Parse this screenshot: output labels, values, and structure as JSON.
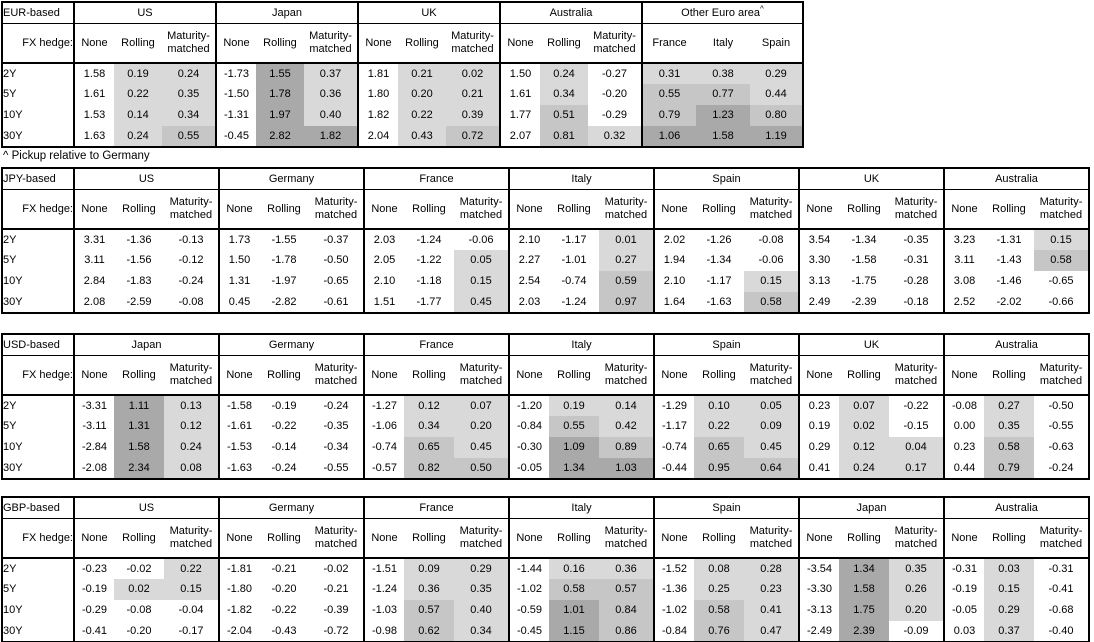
{
  "colors": {
    "shade_low": "#d9d9d9",
    "shade_mid": "#c6c6c6",
    "shade_high": "#a9a9a9",
    "grid_line": "#000000"
  },
  "tenors": [
    "2Y",
    "5Y",
    "10Y",
    "30Y"
  ],
  "fx_hedge_label": "FX hedge:",
  "hedge_options": [
    "None",
    "Rolling",
    "Maturity-matched"
  ],
  "footnote": "^ Pickup relative to Germany",
  "tables": [
    {
      "base_label": "EUR-based",
      "groups": [
        {
          "name": "US",
          "columns": [
            "None",
            "Rolling",
            "Maturity-matched"
          ],
          "shade_from_column": 1,
          "rows": [
            [
              "1.58",
              "0.19",
              "0.24"
            ],
            [
              "1.61",
              "0.22",
              "0.35"
            ],
            [
              "1.53",
              "0.14",
              "0.34"
            ],
            [
              "1.63",
              "0.24",
              "0.55"
            ]
          ]
        },
        {
          "name": "Japan",
          "columns": [
            "None",
            "Rolling",
            "Maturity-matched"
          ],
          "shade_from_column": 1,
          "rows": [
            [
              "-1.73",
              "1.55",
              "0.37"
            ],
            [
              "-1.50",
              "1.78",
              "0.36"
            ],
            [
              "-1.31",
              "1.97",
              "0.40"
            ],
            [
              "-0.45",
              "2.82",
              "1.82"
            ]
          ]
        },
        {
          "name": "UK",
          "columns": [
            "None",
            "Rolling",
            "Maturity-matched"
          ],
          "shade_from_column": 1,
          "rows": [
            [
              "1.81",
              "0.21",
              "0.02"
            ],
            [
              "1.80",
              "0.20",
              "0.21"
            ],
            [
              "1.82",
              "0.22",
              "0.39"
            ],
            [
              "2.04",
              "0.43",
              "0.72"
            ]
          ]
        },
        {
          "name": "Australia",
          "columns": [
            "None",
            "Rolling",
            "Maturity-matched"
          ],
          "shade_from_column": 1,
          "rows": [
            [
              "1.50",
              "0.24",
              "-0.27"
            ],
            [
              "1.61",
              "0.34",
              "-0.20"
            ],
            [
              "1.77",
              "0.51",
              "-0.29"
            ],
            [
              "2.07",
              "0.81",
              "0.32"
            ]
          ]
        },
        {
          "name": "Other Euro area",
          "footnote_marker": "^",
          "columns": [
            "France",
            "Italy",
            "Spain"
          ],
          "shade_from_column": 0,
          "rows": [
            [
              "0.31",
              "0.38",
              "0.29"
            ],
            [
              "0.55",
              "0.77",
              "0.44"
            ],
            [
              "0.79",
              "1.23",
              "0.80"
            ],
            [
              "1.06",
              "1.58",
              "1.19"
            ]
          ]
        }
      ]
    },
    {
      "base_label": "JPY-based",
      "groups": [
        {
          "name": "US",
          "columns": [
            "None",
            "Rolling",
            "Maturity-matched"
          ],
          "shade_from_column": 1,
          "rows": [
            [
              "3.31",
              "-1.36",
              "-0.13"
            ],
            [
              "3.11",
              "-1.56",
              "-0.12"
            ],
            [
              "2.84",
              "-1.83",
              "-0.24"
            ],
            [
              "2.08",
              "-2.59",
              "-0.08"
            ]
          ]
        },
        {
          "name": "Germany",
          "columns": [
            "None",
            "Rolling",
            "Maturity-matched"
          ],
          "shade_from_column": 1,
          "rows": [
            [
              "1.73",
              "-1.55",
              "-0.37"
            ],
            [
              "1.50",
              "-1.78",
              "-0.50"
            ],
            [
              "1.31",
              "-1.97",
              "-0.65"
            ],
            [
              "0.45",
              "-2.82",
              "-0.61"
            ]
          ]
        },
        {
          "name": "France",
          "columns": [
            "None",
            "Rolling",
            "Maturity-matched"
          ],
          "shade_from_column": 1,
          "rows": [
            [
              "2.03",
              "-1.24",
              "-0.06"
            ],
            [
              "2.05",
              "-1.22",
              "0.05"
            ],
            [
              "2.10",
              "-1.18",
              "0.15"
            ],
            [
              "1.51",
              "-1.77",
              "0.45"
            ]
          ]
        },
        {
          "name": "Italy",
          "columns": [
            "None",
            "Rolling",
            "Maturity-matched"
          ],
          "shade_from_column": 1,
          "rows": [
            [
              "2.10",
              "-1.17",
              "0.01"
            ],
            [
              "2.27",
              "-1.01",
              "0.27"
            ],
            [
              "2.54",
              "-0.74",
              "0.59"
            ],
            [
              "2.03",
              "-1.24",
              "0.97"
            ]
          ]
        },
        {
          "name": "Spain",
          "columns": [
            "None",
            "Rolling",
            "Maturity-matched"
          ],
          "shade_from_column": 1,
          "rows": [
            [
              "2.02",
              "-1.26",
              "-0.08"
            ],
            [
              "1.94",
              "-1.34",
              "-0.06"
            ],
            [
              "2.10",
              "-1.17",
              "0.15"
            ],
            [
              "1.64",
              "-1.63",
              "0.58"
            ]
          ]
        },
        {
          "name": "UK",
          "columns": [
            "None",
            "Rolling",
            "Maturity-matched"
          ],
          "shade_from_column": 1,
          "rows": [
            [
              "3.54",
              "-1.34",
              "-0.35"
            ],
            [
              "3.30",
              "-1.58",
              "-0.31"
            ],
            [
              "3.13",
              "-1.75",
              "-0.28"
            ],
            [
              "2.49",
              "-2.39",
              "-0.18"
            ]
          ]
        },
        {
          "name": "Australia",
          "columns": [
            "None",
            "Rolling",
            "Maturity-matched"
          ],
          "shade_from_column": 1,
          "rows": [
            [
              "3.23",
              "-1.31",
              "0.15"
            ],
            [
              "3.11",
              "-1.43",
              "0.58"
            ],
            [
              "3.08",
              "-1.46",
              "-0.65"
            ],
            [
              "2.52",
              "-2.02",
              "-0.66"
            ]
          ]
        }
      ]
    },
    {
      "base_label": "USD-based",
      "groups": [
        {
          "name": "Japan",
          "columns": [
            "None",
            "Rolling",
            "Maturity-matched"
          ],
          "shade_from_column": 1,
          "rows": [
            [
              "-3.31",
              "1.11",
              "0.13"
            ],
            [
              "-3.11",
              "1.31",
              "0.12"
            ],
            [
              "-2.84",
              "1.58",
              "0.24"
            ],
            [
              "-2.08",
              "2.34",
              "0.08"
            ]
          ]
        },
        {
          "name": "Germany",
          "columns": [
            "None",
            "Rolling",
            "Maturity-matched"
          ],
          "shade_from_column": 1,
          "rows": [
            [
              "-1.58",
              "-0.19",
              "-0.24"
            ],
            [
              "-1.61",
              "-0.22",
              "-0.35"
            ],
            [
              "-1.53",
              "-0.14",
              "-0.34"
            ],
            [
              "-1.63",
              "-0.24",
              "-0.55"
            ]
          ]
        },
        {
          "name": "France",
          "columns": [
            "None",
            "Rolling",
            "Maturity-matched"
          ],
          "shade_from_column": 1,
          "rows": [
            [
              "-1.27",
              "0.12",
              "0.07"
            ],
            [
              "-1.06",
              "0.34",
              "0.20"
            ],
            [
              "-0.74",
              "0.65",
              "0.45"
            ],
            [
              "-0.57",
              "0.82",
              "0.50"
            ]
          ]
        },
        {
          "name": "Italy",
          "columns": [
            "None",
            "Rolling",
            "Maturity-matched"
          ],
          "shade_from_column": 1,
          "rows": [
            [
              "-1.20",
              "0.19",
              "0.14"
            ],
            [
              "-0.84",
              "0.55",
              "0.42"
            ],
            [
              "-0.30",
              "1.09",
              "0.89"
            ],
            [
              "-0.05",
              "1.34",
              "1.03"
            ]
          ]
        },
        {
          "name": "Spain",
          "columns": [
            "None",
            "Rolling",
            "Maturity-matched"
          ],
          "shade_from_column": 1,
          "rows": [
            [
              "-1.29",
              "0.10",
              "0.05"
            ],
            [
              "-1.17",
              "0.22",
              "0.09"
            ],
            [
              "-0.74",
              "0.65",
              "0.45"
            ],
            [
              "-0.44",
              "0.95",
              "0.64"
            ]
          ]
        },
        {
          "name": "UK",
          "columns": [
            "None",
            "Rolling",
            "Maturity-matched"
          ],
          "shade_from_column": 1,
          "rows": [
            [
              "0.23",
              "0.07",
              "-0.22"
            ],
            [
              "0.19",
              "0.02",
              "-0.15"
            ],
            [
              "0.29",
              "0.12",
              "0.04"
            ],
            [
              "0.41",
              "0.24",
              "0.17"
            ]
          ]
        },
        {
          "name": "Australia",
          "columns": [
            "None",
            "Rolling",
            "Maturity-matched"
          ],
          "shade_from_column": 1,
          "rows": [
            [
              "-0.08",
              "0.27",
              "-0.50"
            ],
            [
              "0.00",
              "0.35",
              "-0.55"
            ],
            [
              "0.23",
              "0.58",
              "-0.63"
            ],
            [
              "0.44",
              "0.79",
              "-0.24"
            ]
          ]
        }
      ]
    },
    {
      "base_label": "GBP-based",
      "groups": [
        {
          "name": "US",
          "columns": [
            "None",
            "Rolling",
            "Maturity-matched"
          ],
          "shade_from_column": 1,
          "rows": [
            [
              "-0.23",
              "-0.02",
              "0.22"
            ],
            [
              "-0.19",
              "0.02",
              "0.15"
            ],
            [
              "-0.29",
              "-0.08",
              "-0.04"
            ],
            [
              "-0.41",
              "-0.20",
              "-0.17"
            ]
          ]
        },
        {
          "name": "Germany",
          "columns": [
            "None",
            "Rolling",
            "Maturity-matched"
          ],
          "shade_from_column": 1,
          "rows": [
            [
              "-1.81",
              "-0.21",
              "-0.02"
            ],
            [
              "-1.80",
              "-0.20",
              "-0.21"
            ],
            [
              "-1.82",
              "-0.22",
              "-0.39"
            ],
            [
              "-2.04",
              "-0.43",
              "-0.72"
            ]
          ]
        },
        {
          "name": "France",
          "columns": [
            "None",
            "Rolling",
            "Maturity-matched"
          ],
          "shade_from_column": 1,
          "rows": [
            [
              "-1.51",
              "0.09",
              "0.29"
            ],
            [
              "-1.24",
              "0.36",
              "0.35"
            ],
            [
              "-1.03",
              "0.57",
              "0.40"
            ],
            [
              "-0.98",
              "0.62",
              "0.34"
            ]
          ]
        },
        {
          "name": "Italy",
          "columns": [
            "None",
            "Rolling",
            "Maturity-matched"
          ],
          "shade_from_column": 1,
          "rows": [
            [
              "-1.44",
              "0.16",
              "0.36"
            ],
            [
              "-1.02",
              "0.58",
              "0.57"
            ],
            [
              "-0.59",
              "1.01",
              "0.84"
            ],
            [
              "-0.45",
              "1.15",
              "0.86"
            ]
          ]
        },
        {
          "name": "Spain",
          "columns": [
            "None",
            "Rolling",
            "Maturity-matched"
          ],
          "shade_from_column": 1,
          "rows": [
            [
              "-1.52",
              "0.08",
              "0.28"
            ],
            [
              "-1.36",
              "0.25",
              "0.23"
            ],
            [
              "-1.02",
              "0.58",
              "0.41"
            ],
            [
              "-0.84",
              "0.76",
              "0.47"
            ]
          ]
        },
        {
          "name": "Japan",
          "columns": [
            "None",
            "Rolling",
            "Maturity-matched"
          ],
          "shade_from_column": 1,
          "rows": [
            [
              "-3.54",
              "1.34",
              "0.35"
            ],
            [
              "-3.30",
              "1.58",
              "0.26"
            ],
            [
              "-3.13",
              "1.75",
              "0.20"
            ],
            [
              "-2.49",
              "2.39",
              "-0.09"
            ]
          ]
        },
        {
          "name": "Australia",
          "columns": [
            "None",
            "Rolling",
            "Maturity-matched"
          ],
          "shade_from_column": 1,
          "rows": [
            [
              "-0.31",
              "0.03",
              "-0.31"
            ],
            [
              "-0.19",
              "0.15",
              "-0.41"
            ],
            [
              "-0.05",
              "0.29",
              "-0.68"
            ],
            [
              "0.03",
              "0.37",
              "-0.40"
            ]
          ]
        }
      ]
    }
  ]
}
